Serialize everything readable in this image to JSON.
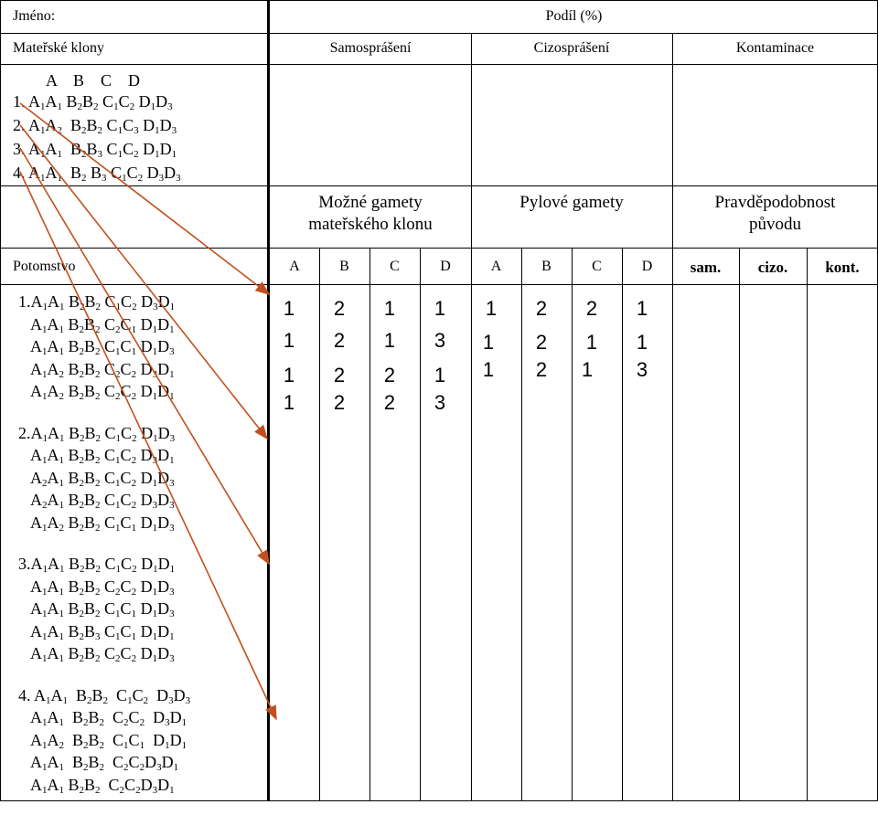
{
  "header": {
    "name_label": "Jméno:",
    "share_label": "Podíl (%)",
    "mother_clones_label": "Mateřské klony",
    "col_self": "Samosprášení",
    "col_cross": "Cizosprášení",
    "col_contam": "Kontaminace",
    "possible_gametes_line1": "Možné gamety",
    "possible_gametes_line2": "mateřského klonu",
    "pollen_gametes": "Pylové gamety",
    "probability_line1": "Pravděpodobnost",
    "probability_line2": "původu",
    "offspring_label": "Potomstvo",
    "gamete_cols": [
      "A",
      "B",
      "C",
      "D"
    ],
    "pollen_cols": [
      "A",
      "B",
      "C",
      "D"
    ],
    "prob_cols": [
      "sam.",
      "cizo.",
      "kont."
    ]
  },
  "mother_header_letters": "A    B    C    D",
  "mother_clones": [
    {
      "prefix": "1. ",
      "parts": [
        [
          "A",
          "1"
        ],
        [
          "A",
          "1"
        ],
        [
          " B",
          "2"
        ],
        [
          "B",
          "2"
        ],
        [
          " C",
          "1"
        ],
        [
          "C",
          "2"
        ],
        [
          " D",
          "1"
        ],
        [
          "D",
          "3"
        ]
      ]
    },
    {
      "prefix": "2. ",
      "parts": [
        [
          "A",
          "1"
        ],
        [
          "A",
          "2"
        ],
        [
          "  B",
          "2"
        ],
        [
          "B",
          "2"
        ],
        [
          " C",
          "1"
        ],
        [
          "C",
          "3"
        ],
        [
          " D",
          "1"
        ],
        [
          "D",
          "3"
        ]
      ]
    },
    {
      "prefix": "3. ",
      "parts": [
        [
          "A",
          "1"
        ],
        [
          "A",
          "1"
        ],
        [
          "  B",
          "2"
        ],
        [
          "B",
          "3"
        ],
        [
          " C",
          "1"
        ],
        [
          "C",
          "2"
        ],
        [
          " D",
          "1"
        ],
        [
          "D",
          "1"
        ]
      ]
    },
    {
      "prefix": "4. ",
      "parts": [
        [
          "A",
          "1"
        ],
        [
          "A",
          "1"
        ],
        [
          "  B",
          "2"
        ],
        [
          " B",
          "3"
        ],
        [
          " C",
          "1"
        ],
        [
          "C",
          "2"
        ],
        [
          " D",
          "3"
        ],
        [
          "D",
          "3"
        ]
      ]
    }
  ],
  "offspring_groups": [
    {
      "rows": [
        {
          "prefix": "1.",
          "parts": [
            [
              "A",
              "1"
            ],
            [
              "A",
              "1"
            ],
            [
              " B",
              "2"
            ],
            [
              "B",
              "2"
            ],
            [
              " C",
              "1"
            ],
            [
              "C",
              "2"
            ],
            [
              " D",
              "3"
            ],
            [
              "D",
              "1"
            ]
          ]
        },
        {
          "prefix": "",
          "parts": [
            [
              "A",
              "1"
            ],
            [
              "A",
              "1"
            ],
            [
              " B",
              "2"
            ],
            [
              "B",
              "2"
            ],
            [
              " C",
              "2"
            ],
            [
              "C",
              "1"
            ],
            [
              " D",
              "1"
            ],
            [
              "D",
              "1"
            ]
          ]
        },
        {
          "prefix": "",
          "parts": [
            [
              "A",
              "1"
            ],
            [
              "A",
              "1"
            ],
            [
              " B",
              "2"
            ],
            [
              "B",
              "2"
            ],
            [
              " C",
              "1"
            ],
            [
              "C",
              "1"
            ],
            [
              " D",
              "1"
            ],
            [
              "D",
              "3"
            ]
          ]
        },
        {
          "prefix": "",
          "parts": [
            [
              "A",
              "1"
            ],
            [
              "A",
              "2"
            ],
            [
              " B",
              "2"
            ],
            [
              "B",
              "2"
            ],
            [
              " C",
              "2"
            ],
            [
              "C",
              "2"
            ],
            [
              " D",
              "3"
            ],
            [
              "D",
              "1"
            ]
          ]
        },
        {
          "prefix": "",
          "parts": [
            [
              "A",
              "1"
            ],
            [
              "A",
              "2"
            ],
            [
              " B",
              "2"
            ],
            [
              "B",
              "2"
            ],
            [
              " C",
              "2"
            ],
            [
              "C",
              "2"
            ],
            [
              " D",
              "1"
            ],
            [
              "D",
              "1"
            ]
          ]
        }
      ]
    },
    {
      "rows": [
        {
          "prefix": "2.",
          "parts": [
            [
              "A",
              "1"
            ],
            [
              "A",
              "1"
            ],
            [
              " B",
              "2"
            ],
            [
              "B",
              "2"
            ],
            [
              " C",
              "1"
            ],
            [
              "C",
              "2"
            ],
            [
              " D",
              "1"
            ],
            [
              "D",
              "3"
            ]
          ]
        },
        {
          "prefix": "",
          "parts": [
            [
              "A",
              "1"
            ],
            [
              "A",
              "1"
            ],
            [
              " B",
              "2"
            ],
            [
              "B",
              "2"
            ],
            [
              " C",
              "1"
            ],
            [
              "C",
              "2"
            ],
            [
              " D",
              "3"
            ],
            [
              "D",
              "1"
            ]
          ]
        },
        {
          "prefix": "",
          "parts": [
            [
              "A",
              "2"
            ],
            [
              "A",
              "1"
            ],
            [
              " B",
              "2"
            ],
            [
              "B",
              "2"
            ],
            [
              " C",
              "1"
            ],
            [
              "C",
              "2"
            ],
            [
              " D",
              "1"
            ],
            [
              "D",
              "3"
            ]
          ]
        },
        {
          "prefix": "",
          "parts": [
            [
              "A",
              "2"
            ],
            [
              "A",
              "1"
            ],
            [
              " B",
              "2"
            ],
            [
              "B",
              "2"
            ],
            [
              " C",
              "1"
            ],
            [
              "C",
              "2"
            ],
            [
              " D",
              "3"
            ],
            [
              "D",
              "3"
            ]
          ]
        },
        {
          "prefix": "",
          "parts": [
            [
              "A",
              "1"
            ],
            [
              "A",
              "2"
            ],
            [
              " B",
              "2"
            ],
            [
              "B",
              "2"
            ],
            [
              " C",
              "1"
            ],
            [
              "C",
              "1"
            ],
            [
              " D",
              "1"
            ],
            [
              "D",
              "3"
            ]
          ]
        }
      ]
    },
    {
      "rows": [
        {
          "prefix": "3.",
          "parts": [
            [
              "A",
              "1"
            ],
            [
              "A",
              "1"
            ],
            [
              " B",
              "2"
            ],
            [
              "B",
              "2"
            ],
            [
              " C",
              "1"
            ],
            [
              "C",
              "2"
            ],
            [
              " D",
              "1"
            ],
            [
              "D",
              "1"
            ]
          ]
        },
        {
          "prefix": "",
          "parts": [
            [
              "A",
              "1"
            ],
            [
              "A",
              "1"
            ],
            [
              " B",
              "2"
            ],
            [
              "B",
              "2"
            ],
            [
              " C",
              "2"
            ],
            [
              "C",
              "2"
            ],
            [
              " D",
              "1"
            ],
            [
              "D",
              "3"
            ]
          ]
        },
        {
          "prefix": "",
          "parts": [
            [
              "A",
              "1"
            ],
            [
              "A",
              "1"
            ],
            [
              " B",
              "2"
            ],
            [
              "B",
              "2"
            ],
            [
              " C",
              "1"
            ],
            [
              "C",
              "1"
            ],
            [
              " D",
              "1"
            ],
            [
              "D",
              "3"
            ]
          ]
        },
        {
          "prefix": "",
          "parts": [
            [
              "A",
              "1"
            ],
            [
              "A",
              "1"
            ],
            [
              " B",
              "2"
            ],
            [
              "B",
              "3"
            ],
            [
              " C",
              "1"
            ],
            [
              "C",
              "1"
            ],
            [
              " D",
              "1"
            ],
            [
              "D",
              "1"
            ]
          ]
        },
        {
          "prefix": "",
          "parts": [
            [
              "A",
              "1"
            ],
            [
              "A",
              "1"
            ],
            [
              " B",
              "2"
            ],
            [
              "B",
              "2"
            ],
            [
              " C",
              "2"
            ],
            [
              "C",
              "2"
            ],
            [
              " D",
              "1"
            ],
            [
              "D",
              "3"
            ]
          ]
        }
      ]
    },
    {
      "rows": [
        {
          "prefix": "4. ",
          "parts": [
            [
              "A",
              "1"
            ],
            [
              "A",
              "1"
            ],
            [
              "  B",
              "2"
            ],
            [
              "B",
              "2"
            ],
            [
              "  C",
              "1"
            ],
            [
              "C",
              "2"
            ],
            [
              "  D",
              "3"
            ],
            [
              "D",
              "3"
            ]
          ]
        },
        {
          "prefix": "",
          "parts": [
            [
              "A",
              "1"
            ],
            [
              "A",
              "1"
            ],
            [
              "  B",
              "2"
            ],
            [
              "B",
              "2"
            ],
            [
              "  C",
              "2"
            ],
            [
              "C",
              "2"
            ],
            [
              "  D",
              "3"
            ],
            [
              "D",
              "1"
            ]
          ]
        },
        {
          "prefix": "",
          "parts": [
            [
              "A",
              "1"
            ],
            [
              "A",
              "2"
            ],
            [
              "  B",
              "2"
            ],
            [
              "B",
              "2"
            ],
            [
              "  C",
              "1"
            ],
            [
              "C",
              "1"
            ],
            [
              "  D",
              "1"
            ],
            [
              "D",
              "1"
            ]
          ]
        },
        {
          "prefix": "",
          "parts": [
            [
              "A",
              "1"
            ],
            [
              "A",
              "1"
            ],
            [
              "  B",
              "2"
            ],
            [
              "B",
              "2"
            ],
            [
              "  C",
              "2"
            ],
            [
              "C",
              "2"
            ],
            [
              "D",
              "3"
            ],
            [
              "D",
              "1"
            ]
          ]
        },
        {
          "prefix": "",
          "parts": [
            [
              "A",
              "1"
            ],
            [
              "A",
              "1"
            ],
            [
              " B",
              "2"
            ],
            [
              "B",
              "2"
            ],
            [
              "  C",
              "2"
            ],
            [
              "C",
              "2"
            ],
            [
              "D",
              "3"
            ],
            [
              "D",
              "1"
            ]
          ]
        }
      ]
    }
  ],
  "mother_gamete_values": [
    [
      "1",
      "2",
      "1",
      "1"
    ],
    [
      "1",
      "2",
      "1",
      "3"
    ],
    [
      "1",
      "2",
      "2",
      "1"
    ],
    [
      "1",
      "2",
      "2",
      "3"
    ]
  ],
  "pollen_gamete_values": [
    [
      "1",
      "2",
      "2",
      "1"
    ],
    [
      "1",
      "2",
      "1",
      "1"
    ],
    [
      "1",
      "2",
      "1",
      "3"
    ]
  ],
  "arrow_color": "#c0501f"
}
